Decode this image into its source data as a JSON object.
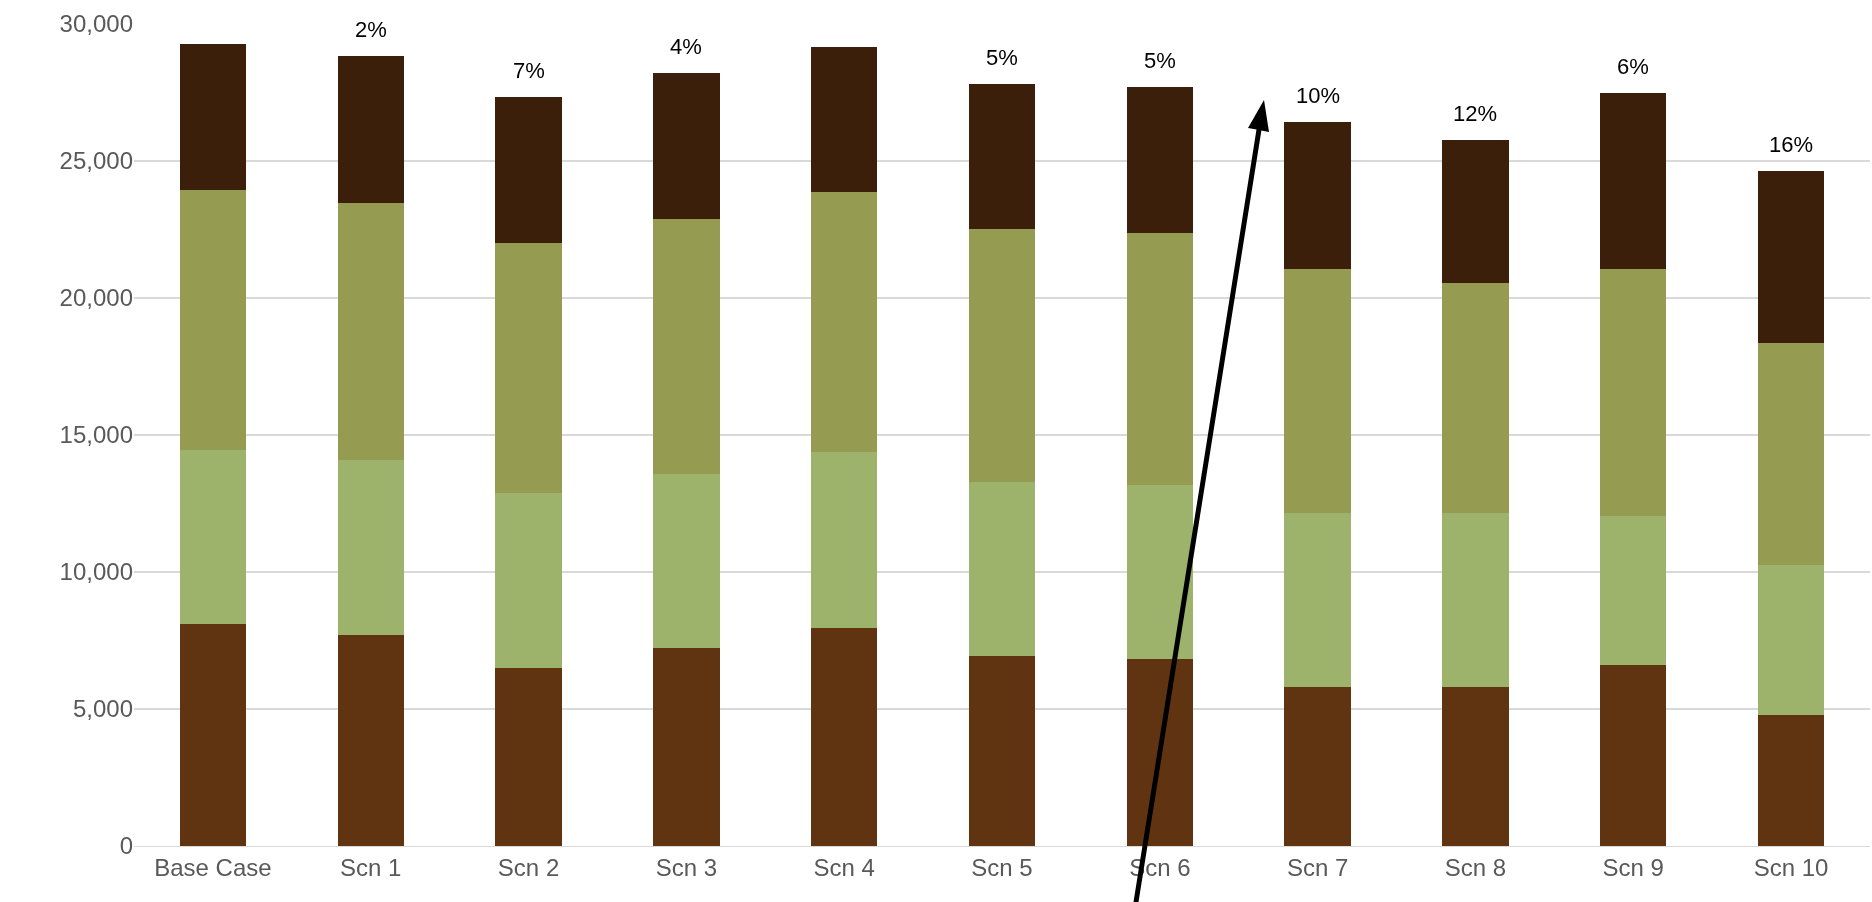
{
  "chart_data": {
    "type": "bar",
    "stacked": true,
    "categories": [
      "Base Case",
      "Scn 1",
      "Scn 2",
      "Scn 3",
      "Scn 4",
      "Scn 5",
      "Scn 6",
      "Scn 7",
      "Scn 8",
      "Scn 9",
      "Scn 10"
    ],
    "series": [
      {
        "color": "#603311",
        "values": [
          8100,
          7700,
          6490,
          7230,
          7970,
          6920,
          6840,
          5790,
          5790,
          6620,
          4790
        ]
      },
      {
        "color": "#9db36b",
        "values": [
          6350,
          6400,
          6400,
          6350,
          6400,
          6360,
          6350,
          6360,
          6360,
          5440,
          5480
        ]
      },
      {
        "color": "#959b50",
        "values": [
          9500,
          9370,
          9100,
          9320,
          9490,
          9230,
          9190,
          8920,
          8400,
          9010,
          8100
        ]
      },
      {
        "color": "#3b1f0b",
        "values": [
          5310,
          5350,
          5350,
          5310,
          5310,
          5310,
          5310,
          5360,
          5220,
          6400,
          6270
        ]
      }
    ],
    "ylim": [
      0,
      30000
    ],
    "yticks": [
      0,
      {
        "value": 5000,
        "label": "5,000"
      },
      {
        "value": 10000,
        "label": "10,000"
      },
      {
        "value": 15000,
        "label": "15,000"
      },
      {
        "value": 20000,
        "label": "20,000"
      },
      {
        "value": 25000,
        "label": "25,000"
      },
      {
        "value": 30000,
        "label": "30,000"
      }
    ],
    "grid": "y",
    "annotations": [
      {
        "text": "2%",
        "x": "Scn 1",
        "y": 28820
      },
      {
        "text": "7%",
        "x": "Scn 2",
        "y": 27340
      },
      {
        "text": "4%",
        "x": "Scn 3",
        "y": 28210
      },
      {
        "text": "5%",
        "x": "Scn 5",
        "y": 27820
      },
      {
        "text": "5%",
        "x": "Scn 6",
        "y": 27690
      },
      {
        "text": "10%",
        "x": "Scn 7",
        "y": 26430
      },
      {
        "text": "12%",
        "x": "Scn 8",
        "y": 25770
      },
      {
        "text": "6%",
        "x": "Scn 9",
        "y": 27470
      },
      {
        "text": "16%",
        "x": "Scn 10",
        "y": 24640
      }
    ]
  }
}
